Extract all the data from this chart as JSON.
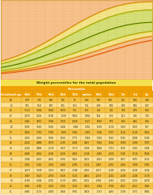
{
  "title": "Weight percentiles for the total population",
  "percentile_label": "Percentile",
  "headers": [
    "Gestational age",
    "99th",
    "97th",
    "95th",
    "90th",
    "75th",
    "median",
    "25th",
    "10th",
    "5th",
    "3rd",
    "1st"
  ],
  "bg_chart": "#faf4e8",
  "grid_color": "#d8c898",
  "x_ages": [
    24,
    25,
    26,
    27,
    28,
    29,
    30,
    31,
    32,
    33,
    34,
    35,
    36,
    37,
    38,
    39,
    40,
    41
  ],
  "curves": {
    "p1": [
      430,
      490,
      565,
      650,
      750,
      865,
      995,
      1140,
      1300,
      1475,
      1660,
      1855,
      2055,
      2255,
      2445,
      2615,
      2760,
      2870
    ],
    "p3": [
      520,
      590,
      680,
      785,
      905,
      1040,
      1195,
      1365,
      1550,
      1745,
      1950,
      2160,
      2370,
      2575,
      2765,
      2935,
      3075,
      3180
    ],
    "p10": [
      640,
      725,
      835,
      965,
      1115,
      1280,
      1465,
      1665,
      1880,
      2105,
      2335,
      2565,
      2790,
      3000,
      3185,
      3340,
      3460,
      3545
    ],
    "p50": [
      870,
      990,
      1140,
      1320,
      1530,
      1765,
      2020,
      2290,
      2570,
      2850,
      3125,
      3385,
      3615,
      3815,
      3975,
      4090,
      4165,
      4200
    ],
    "p90": [
      1150,
      1310,
      1510,
      1750,
      2025,
      2330,
      2655,
      2995,
      3340,
      3680,
      4000,
      4290,
      4540,
      4750,
      4910,
      5020,
      5080,
      5100
    ],
    "p97": [
      1340,
      1530,
      1765,
      2045,
      2365,
      2720,
      3100,
      3490,
      3880,
      4260,
      4610,
      4920,
      5180,
      5390,
      5540,
      5640,
      5690,
      5710
    ]
  },
  "fill_outer": "#f5a050",
  "fill_outer_alpha": 0.6,
  "fill_mid": "#f0d840",
  "fill_mid_alpha": 0.55,
  "fill_inner": "#b8d020",
  "fill_inner_alpha": 0.55,
  "line_p1_color": "#e05000",
  "line_p3_color": "#d08000",
  "line_p10_color": "#a0a000",
  "line_p50_color": "#507000",
  "line_p90_color": "#a0a000",
  "line_p97_color": "#d08000",
  "line_lw": 0.7,
  "table_data": [
    [
      "24",
      "870",
      "735",
      "558",
      "181",
      "95",
      "644",
      "503",
      "547",
      "521",
      "500",
      "408"
    ],
    [
      "25",
      "952",
      "818",
      "897",
      "855",
      "813",
      "752",
      "839",
      "509",
      "800",
      "566",
      "647"
    ],
    [
      "26",
      "1110",
      "1064",
      "1040",
      "1003",
      "912",
      "872",
      "741",
      "141",
      "700",
      "578",
      "836"
    ],
    [
      "27",
      "1279",
      "1205",
      "1199",
      "1159",
      "1063",
      "1004",
      "524",
      "853",
      "812",
      "782",
      "730"
    ],
    [
      "28",
      "1481",
      "1851",
      "1389",
      "1330",
      "1228",
      "1147",
      "1067",
      "875",
      "830",
      "824",
      "836"
    ],
    [
      "29",
      "1558",
      "1560",
      "1564",
      "1494",
      "1489",
      "1302",
      "1199",
      "1136",
      "3051",
      "1025",
      "947"
    ],
    [
      "30",
      "1849",
      "1782",
      "1782",
      "1569",
      "1362",
      "1458",
      "1198",
      "1747",
      "1141",
      "1144",
      "1061"
    ],
    [
      "31",
      "2091",
      "2005",
      "1580",
      "1560",
      "1771",
      "1548",
      "1342",
      "1560",
      "1525",
      "1298",
      "1184"
    ],
    [
      "32",
      "2324",
      "2488",
      "1879",
      "2190",
      "2548",
      "3425",
      "1954",
      "1602",
      "1600",
      "1400",
      "1307"
    ],
    [
      "33",
      "2564",
      "2498",
      "2178",
      "3327",
      "3173",
      "3004",
      "1864",
      "1713",
      "1505",
      "1540",
      "1394"
    ],
    [
      "34",
      "2898",
      "2994",
      "2508",
      "2509",
      "2981",
      "2108",
      "2092",
      "2074",
      "1195",
      "1118",
      "1094"
    ],
    [
      "35",
      "3006",
      "2930",
      "2954",
      "3761",
      "3425",
      "3425",
      "2215",
      "2009",
      "1957",
      "1975",
      "1145"
    ],
    [
      "36",
      "3061",
      "3185",
      "3003",
      "2060",
      "2796",
      "3131",
      "2087",
      "2291",
      "2062",
      "3006",
      "1395"
    ],
    [
      "37",
      "3270",
      "3638",
      "3023",
      "3437",
      "3188",
      "2061",
      "2727",
      "2538",
      "2560",
      "2508",
      "3001"
    ],
    [
      "38",
      "3067",
      "3623",
      "2730",
      "3503",
      "3122",
      "2461",
      "2727",
      "2516",
      "2508",
      "2508",
      "3178"
    ],
    [
      "39",
      "4186",
      "3604",
      "2750",
      "3130",
      "2945",
      "2922",
      "2764",
      "2560",
      "2553",
      "2502",
      "2378"
    ],
    [
      "40",
      "4385",
      "4195",
      "3023",
      "3150",
      "3150",
      "3023",
      "2794",
      "3794",
      "2551",
      "2552",
      "3990"
    ],
    [
      "41",
      "4385",
      "4135",
      "4000",
      "3944",
      "3755",
      "3426",
      "3157",
      "3253",
      "3158",
      "3071",
      "3492"
    ]
  ],
  "header_bg": "#f0a000",
  "header_color": "#ffffff",
  "row_odd_bg": "#f5c040",
  "row_even_bg": "#fde090",
  "border_color": "#c09020",
  "title_bg": "#f5e050",
  "title_color": "#333300"
}
